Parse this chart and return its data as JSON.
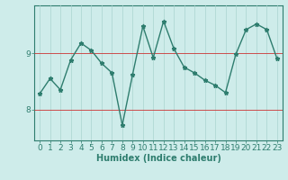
{
  "x": [
    0,
    1,
    2,
    3,
    4,
    5,
    6,
    7,
    8,
    9,
    10,
    11,
    12,
    13,
    14,
    15,
    16,
    17,
    18,
    19,
    20,
    21,
    22,
    23
  ],
  "y": [
    8.28,
    8.55,
    8.35,
    8.88,
    9.18,
    9.05,
    8.82,
    8.65,
    7.72,
    8.62,
    9.48,
    8.92,
    9.57,
    9.08,
    8.75,
    8.65,
    8.52,
    8.43,
    8.3,
    8.98,
    9.42,
    9.52,
    9.42,
    8.9
  ],
  "line_color": "#2e7d6e",
  "marker": "*",
  "marker_size": 3.5,
  "bg_color": "#ceecea",
  "vgrid_color": "#aad4d0",
  "axis_color": "#2e7d6e",
  "xlabel": "Humidex (Indice chaleur)",
  "xlabel_fontsize": 7,
  "ytick_labels": [
    "8",
    "9"
  ],
  "ytick_values": [
    8,
    9
  ],
  "ylim": [
    7.45,
    9.85
  ],
  "xlim": [
    -0.5,
    23.5
  ],
  "xtick_values": [
    0,
    1,
    2,
    3,
    4,
    5,
    6,
    7,
    8,
    9,
    10,
    11,
    12,
    13,
    14,
    15,
    16,
    17,
    18,
    19,
    20,
    21,
    22,
    23
  ],
  "tick_fontsize": 6.5,
  "hgrid_color": "#cc3333",
  "hgrid_linewidth": 0.6,
  "vgrid_linewidth": 0.5,
  "line_width": 1.0
}
